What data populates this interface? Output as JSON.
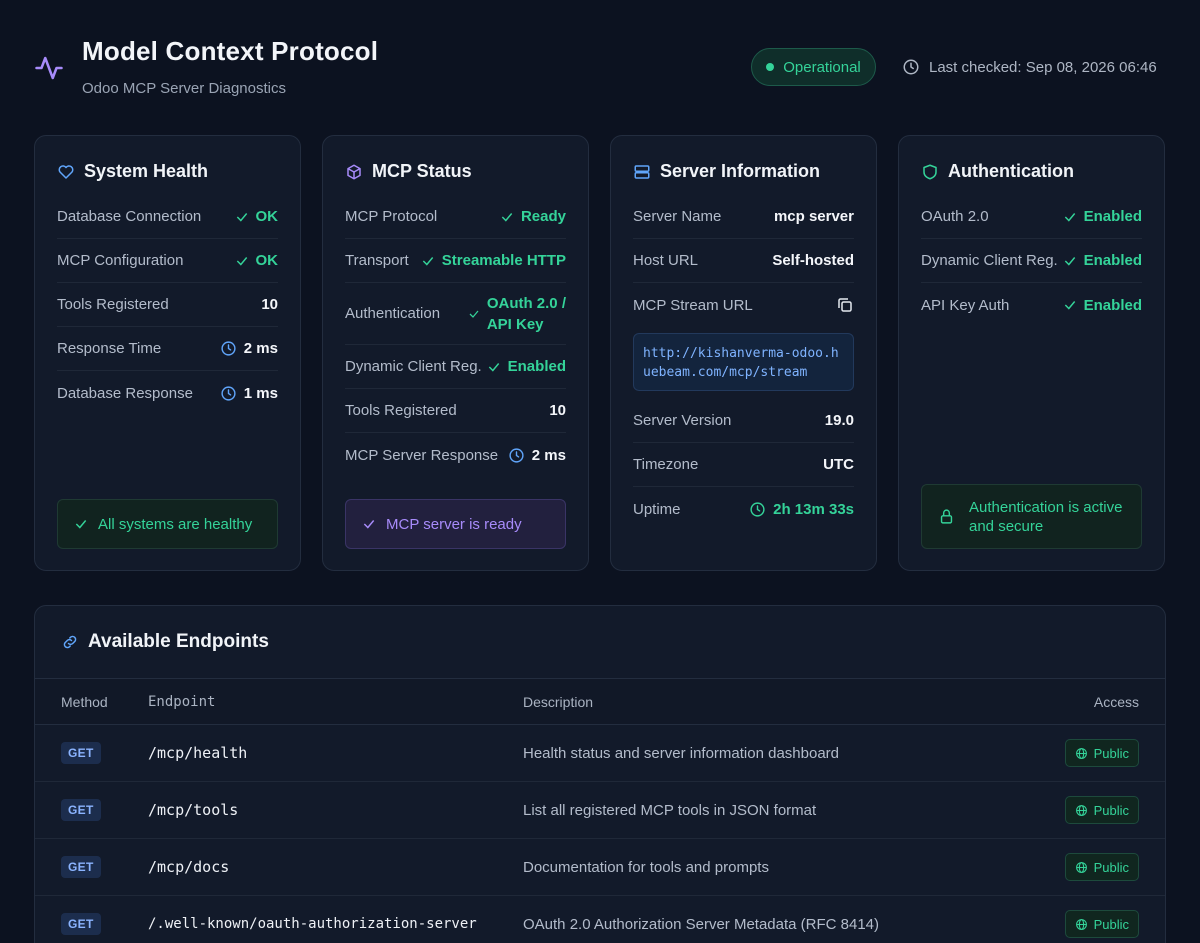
{
  "header": {
    "title": "Model Context Protocol",
    "subtitle": "Odoo MCP Server Diagnostics",
    "status": "Operational",
    "last_checked": "Last checked: Sep 08, 2026 06:46"
  },
  "cards": {
    "system_health": {
      "title": "System Health",
      "rows": [
        {
          "label": "Database Connection",
          "value": "OK"
        },
        {
          "label": "MCP Configuration",
          "value": "OK"
        },
        {
          "label": "Tools Registered",
          "value": "10"
        },
        {
          "label": "Response Time",
          "value": "2 ms"
        },
        {
          "label": "Database Response",
          "value": "1 ms"
        }
      ],
      "footer": "All systems are healthy"
    },
    "mcp_status": {
      "title": "MCP Status",
      "rows": [
        {
          "label": "MCP Protocol",
          "value": "Ready"
        },
        {
          "label": "Transport",
          "value": "Streamable HTTP"
        },
        {
          "label": "Authentication",
          "value_line1": "OAuth 2.0 /",
          "value_line2": "API Key"
        },
        {
          "label": "Dynamic Client Reg.",
          "value": "Enabled"
        },
        {
          "label": "Tools Registered",
          "value": "10"
        },
        {
          "label": "MCP Server Response",
          "value": "2 ms"
        }
      ],
      "footer": "MCP server is ready"
    },
    "server_info": {
      "title": "Server Information",
      "rows": [
        {
          "label": "Server Name",
          "value": "mcp server"
        },
        {
          "label": "Host URL",
          "value": "Self-hosted"
        },
        {
          "label": "MCP Stream URL",
          "value": "http://kishanverma-odoo.huebeam.com/mcp/stream"
        },
        {
          "label": "Server Version",
          "value": "19.0"
        },
        {
          "label": "Timezone",
          "value": "UTC"
        },
        {
          "label": "Uptime",
          "value": "2h 13m 33s"
        }
      ]
    },
    "authentication": {
      "title": "Authentication",
      "rows": [
        {
          "label": "OAuth 2.0",
          "value": "Enabled"
        },
        {
          "label": "Dynamic Client Reg.",
          "value": "Enabled"
        },
        {
          "label": "API Key Auth",
          "value": "Enabled"
        }
      ],
      "footer_line1": "Authentication is active",
      "footer_line2": "and secure"
    }
  },
  "endpoints": {
    "title": "Available Endpoints",
    "columns": {
      "method": "Method",
      "endpoint": "Endpoint",
      "description": "Description",
      "access": "Access"
    },
    "rows": [
      {
        "method": "GET",
        "path": "/mcp/health",
        "description": "Health status and server information dashboard",
        "access": "Public"
      },
      {
        "method": "GET",
        "path": "/mcp/tools",
        "description": "List all registered MCP tools in JSON format",
        "access": "Public"
      },
      {
        "method": "GET",
        "path": "/mcp/docs",
        "description": "Documentation for tools and prompts",
        "access": "Public"
      },
      {
        "method": "GET",
        "path": "/.well-known/oauth-authorization-server",
        "description": "OAuth 2.0 Authorization Server Metadata (RFC 8414)",
        "access": "Public"
      }
    ]
  },
  "colors": {
    "background": "#0c1220",
    "card": "#121a2a",
    "green": "#34d399",
    "purple": "#a78bfa",
    "blue": "#60a5fa"
  },
  "icons": [
    "activity-icon",
    "clock-icon",
    "heart-icon",
    "box-icon",
    "server-icon",
    "shield-icon",
    "check-icon",
    "copy-icon",
    "lock-icon",
    "link-icon",
    "globe-icon"
  ]
}
